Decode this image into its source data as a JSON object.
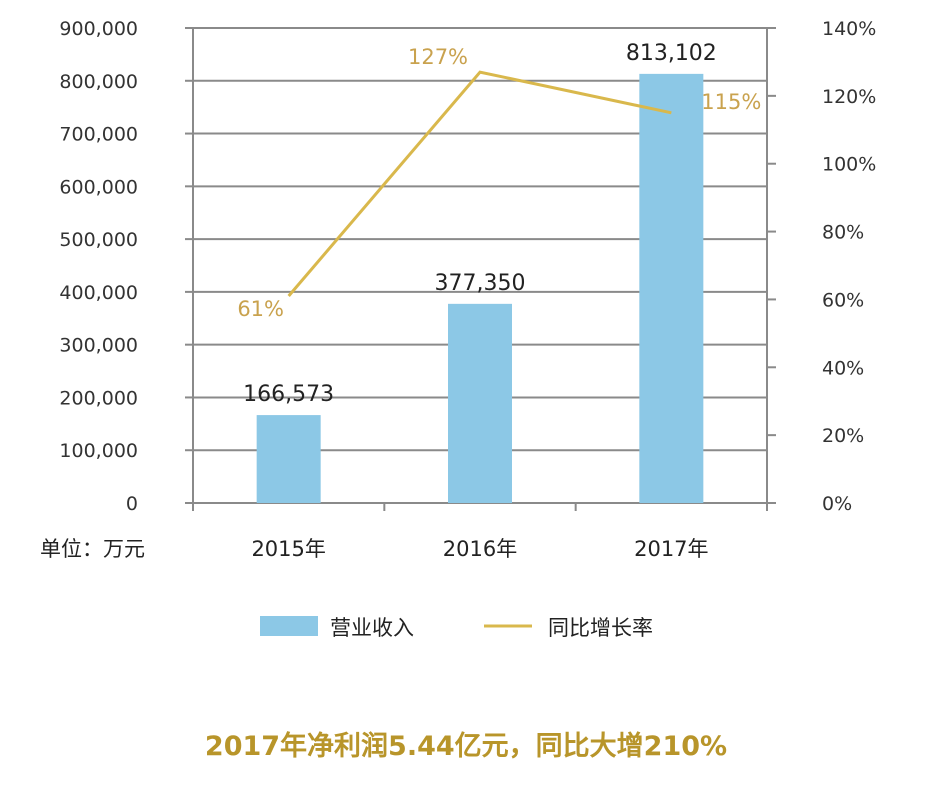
{
  "chart_data": {
    "type": "bar+line",
    "categories": [
      "2015年",
      "2016年",
      "2017年"
    ],
    "unit_label": "单位：万元",
    "series": [
      {
        "name": "营业收入",
        "type": "bar",
        "axis": "left",
        "values": [
          166573,
          377350,
          813102
        ],
        "labels": [
          "166,573",
          "377,350",
          "813,102"
        ],
        "color": "#8cc8e6"
      },
      {
        "name": "同比增长率",
        "type": "line",
        "axis": "right",
        "values": [
          61,
          127,
          115
        ],
        "labels": [
          "61%",
          "127%",
          "115%"
        ],
        "color": "#d9b84c"
      }
    ],
    "left_axis": {
      "ylim": [
        0,
        900000
      ],
      "ticks": [
        "0",
        "100,000",
        "200,000",
        "300,000",
        "400,000",
        "500,000",
        "600,000",
        "700,000",
        "800,000",
        "900,000"
      ]
    },
    "right_axis": {
      "ylim": [
        0,
        140
      ],
      "ticks": [
        "0%",
        "20%",
        "40%",
        "60%",
        "80%",
        "100%",
        "120%",
        "140%"
      ]
    },
    "grid": true,
    "legend_position": "bottom",
    "footnote": "2017年净利润5.44亿元，同比大增210%"
  }
}
